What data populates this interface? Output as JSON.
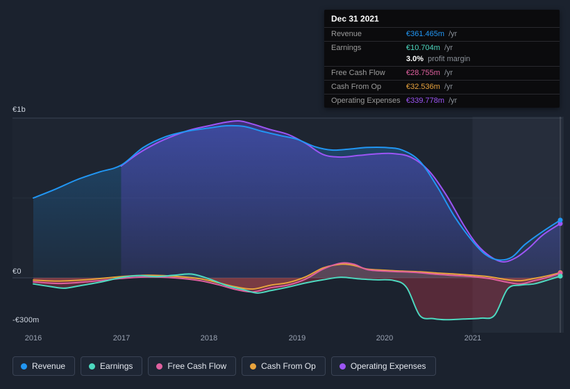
{
  "chart": {
    "y_axis": [
      {
        "text": "€1b",
        "value": 1000
      },
      {
        "text": "€0",
        "value": 0
      },
      {
        "text": "-€300m",
        "value": -300
      }
    ],
    "x_axis": [
      "2016",
      "2017",
      "2018",
      "2019",
      "2020",
      "2021"
    ]
  },
  "tooltip": {
    "date": "Dec 31 2021",
    "rows": [
      {
        "label": "Revenue",
        "value": "€361.465m",
        "suffix": " /yr",
        "series": "Revenue"
      },
      {
        "label": "Earnings",
        "value": "€10.704m",
        "suffix": " /yr",
        "series": "Earnings"
      },
      {
        "label": "",
        "value": "3.0%",
        "suffix": " profit margin",
        "series": ""
      },
      {
        "label": "Free Cash Flow",
        "value": "€28.755m",
        "suffix": " /yr",
        "series": "Free Cash Flow"
      },
      {
        "label": "Cash From Op",
        "value": "€32.536m",
        "suffix": " /yr",
        "series": "Cash From Op"
      },
      {
        "label": "Operating Expenses",
        "value": "€339.778m",
        "suffix": " /yr",
        "series": "Operating Expenses"
      }
    ]
  },
  "legend": [
    {
      "label": "Revenue"
    },
    {
      "label": "Earnings"
    },
    {
      "label": "Free Cash Flow"
    },
    {
      "label": "Cash From Op"
    },
    {
      "label": "Operating Expenses"
    }
  ],
  "colors": {
    "background": "#1b222e",
    "tooltip_bg": "#0b0b0d",
    "gridline": "#3a4352",
    "highlight_band": "rgba(170,190,225,0.06)",
    "negative_earnings_fill": "rgba(205,62,82,0.33)"
  },
  "chart_data": {
    "type": "area",
    "unit": "€m",
    "x_range": [
      2016,
      2022
    ],
    "highlight_region": [
      2021,
      2022
    ],
    "gridlines": [
      1000,
      500,
      0
    ],
    "x_ticks": [
      2016,
      2017,
      2018,
      2019,
      2020,
      2021
    ],
    "y_ticks": [
      {
        "label": "€1b",
        "value": 1000
      },
      {
        "label": "€0",
        "value": 0
      },
      {
        "label": "-€300m",
        "value": -300
      }
    ],
    "series": [
      {
        "name": "Revenue",
        "color": "#2196f3",
        "points": [
          [
            2016,
            500
          ],
          [
            2016.25,
            555
          ],
          [
            2016.5,
            615
          ],
          [
            2016.75,
            662
          ],
          [
            2017,
            705
          ],
          [
            2017.25,
            815
          ],
          [
            2017.5,
            882
          ],
          [
            2017.75,
            918
          ],
          [
            2018,
            938
          ],
          [
            2018.2,
            952
          ],
          [
            2018.4,
            948
          ],
          [
            2018.6,
            918
          ],
          [
            2018.8,
            892
          ],
          [
            2019,
            868
          ],
          [
            2019.2,
            822
          ],
          [
            2019.4,
            800
          ],
          [
            2019.6,
            806
          ],
          [
            2019.8,
            816
          ],
          [
            2020,
            816
          ],
          [
            2020.2,
            800
          ],
          [
            2020.4,
            730
          ],
          [
            2020.6,
            570
          ],
          [
            2020.8,
            380
          ],
          [
            2021,
            230
          ],
          [
            2021.15,
            145
          ],
          [
            2021.3,
            112
          ],
          [
            2021.45,
            130
          ],
          [
            2021.6,
            210
          ],
          [
            2021.8,
            290
          ],
          [
            2022,
            361.465
          ]
        ]
      },
      {
        "name": "Earnings",
        "color": "#4dd9c0",
        "points": [
          [
            2016,
            -38
          ],
          [
            2016.2,
            -55
          ],
          [
            2016.35,
            -65
          ],
          [
            2016.5,
            -52
          ],
          [
            2016.75,
            -28
          ],
          [
            2017,
            2
          ],
          [
            2017.2,
            14
          ],
          [
            2017.4,
            8
          ],
          [
            2017.6,
            16
          ],
          [
            2017.8,
            24
          ],
          [
            2018,
            -6
          ],
          [
            2018.2,
            -48
          ],
          [
            2018.4,
            -75
          ],
          [
            2018.55,
            -95
          ],
          [
            2018.7,
            -80
          ],
          [
            2018.9,
            -58
          ],
          [
            2019.1,
            -32
          ],
          [
            2019.3,
            -12
          ],
          [
            2019.5,
            4
          ],
          [
            2019.7,
            -6
          ],
          [
            2019.9,
            -12
          ],
          [
            2020.1,
            -16
          ],
          [
            2020.25,
            -60
          ],
          [
            2020.4,
            -235
          ],
          [
            2020.55,
            -255
          ],
          [
            2020.7,
            -262
          ],
          [
            2020.9,
            -258
          ],
          [
            2021.1,
            -252
          ],
          [
            2021.25,
            -235
          ],
          [
            2021.4,
            -70
          ],
          [
            2021.55,
            -45
          ],
          [
            2021.7,
            -38
          ],
          [
            2021.85,
            -15
          ],
          [
            2022,
            10.704
          ]
        ]
      },
      {
        "name": "Free Cash Flow",
        "color": "#e0609f",
        "points": [
          [
            2016,
            -25
          ],
          [
            2016.3,
            -35
          ],
          [
            2016.6,
            -25
          ],
          [
            2017,
            -4
          ],
          [
            2017.3,
            6
          ],
          [
            2017.6,
            0
          ],
          [
            2017.9,
            -18
          ],
          [
            2018.1,
            -42
          ],
          [
            2018.3,
            -72
          ],
          [
            2018.5,
            -88
          ],
          [
            2018.7,
            -62
          ],
          [
            2018.9,
            -45
          ],
          [
            2019.1,
            -8
          ],
          [
            2019.3,
            55
          ],
          [
            2019.5,
            92
          ],
          [
            2019.65,
            85
          ],
          [
            2019.8,
            52
          ],
          [
            2020,
            42
          ],
          [
            2020.2,
            38
          ],
          [
            2020.4,
            32
          ],
          [
            2020.6,
            22
          ],
          [
            2020.8,
            15
          ],
          [
            2021,
            8
          ],
          [
            2021.2,
            -5
          ],
          [
            2021.4,
            -28
          ],
          [
            2021.55,
            -38
          ],
          [
            2021.7,
            -18
          ],
          [
            2021.85,
            2
          ],
          [
            2022,
            28.755
          ]
        ]
      },
      {
        "name": "Cash From Op",
        "color": "#e8a33d",
        "points": [
          [
            2016,
            -14
          ],
          [
            2016.3,
            -20
          ],
          [
            2016.6,
            -12
          ],
          [
            2017,
            8
          ],
          [
            2017.3,
            16
          ],
          [
            2017.6,
            10
          ],
          [
            2017.9,
            -6
          ],
          [
            2018.1,
            -30
          ],
          [
            2018.3,
            -56
          ],
          [
            2018.5,
            -70
          ],
          [
            2018.7,
            -46
          ],
          [
            2018.9,
            -30
          ],
          [
            2019.1,
            6
          ],
          [
            2019.3,
            62
          ],
          [
            2019.5,
            85
          ],
          [
            2019.65,
            78
          ],
          [
            2019.8,
            55
          ],
          [
            2020,
            48
          ],
          [
            2020.2,
            42
          ],
          [
            2020.4,
            38
          ],
          [
            2020.6,
            30
          ],
          [
            2020.8,
            24
          ],
          [
            2021,
            16
          ],
          [
            2021.2,
            6
          ],
          [
            2021.4,
            -12
          ],
          [
            2021.55,
            -18
          ],
          [
            2021.7,
            -4
          ],
          [
            2021.85,
            12
          ],
          [
            2022,
            32.536
          ]
        ]
      },
      {
        "name": "Operating Expenses",
        "color": "#9c55f5",
        "points": [
          [
            2017,
            700
          ],
          [
            2017.2,
            780
          ],
          [
            2017.4,
            842
          ],
          [
            2017.6,
            890
          ],
          [
            2017.8,
            928
          ],
          [
            2018,
            952
          ],
          [
            2018.2,
            975
          ],
          [
            2018.35,
            982
          ],
          [
            2018.5,
            962
          ],
          [
            2018.7,
            928
          ],
          [
            2018.9,
            898
          ],
          [
            2019.1,
            842
          ],
          [
            2019.3,
            772
          ],
          [
            2019.5,
            756
          ],
          [
            2019.7,
            766
          ],
          [
            2019.9,
            776
          ],
          [
            2020.1,
            778
          ],
          [
            2020.3,
            755
          ],
          [
            2020.5,
            672
          ],
          [
            2020.7,
            520
          ],
          [
            2020.9,
            330
          ],
          [
            2021.05,
            210
          ],
          [
            2021.2,
            135
          ],
          [
            2021.35,
            100
          ],
          [
            2021.5,
            128
          ],
          [
            2021.65,
            190
          ],
          [
            2021.8,
            268
          ],
          [
            2022,
            339.778
          ]
        ]
      }
    ]
  }
}
